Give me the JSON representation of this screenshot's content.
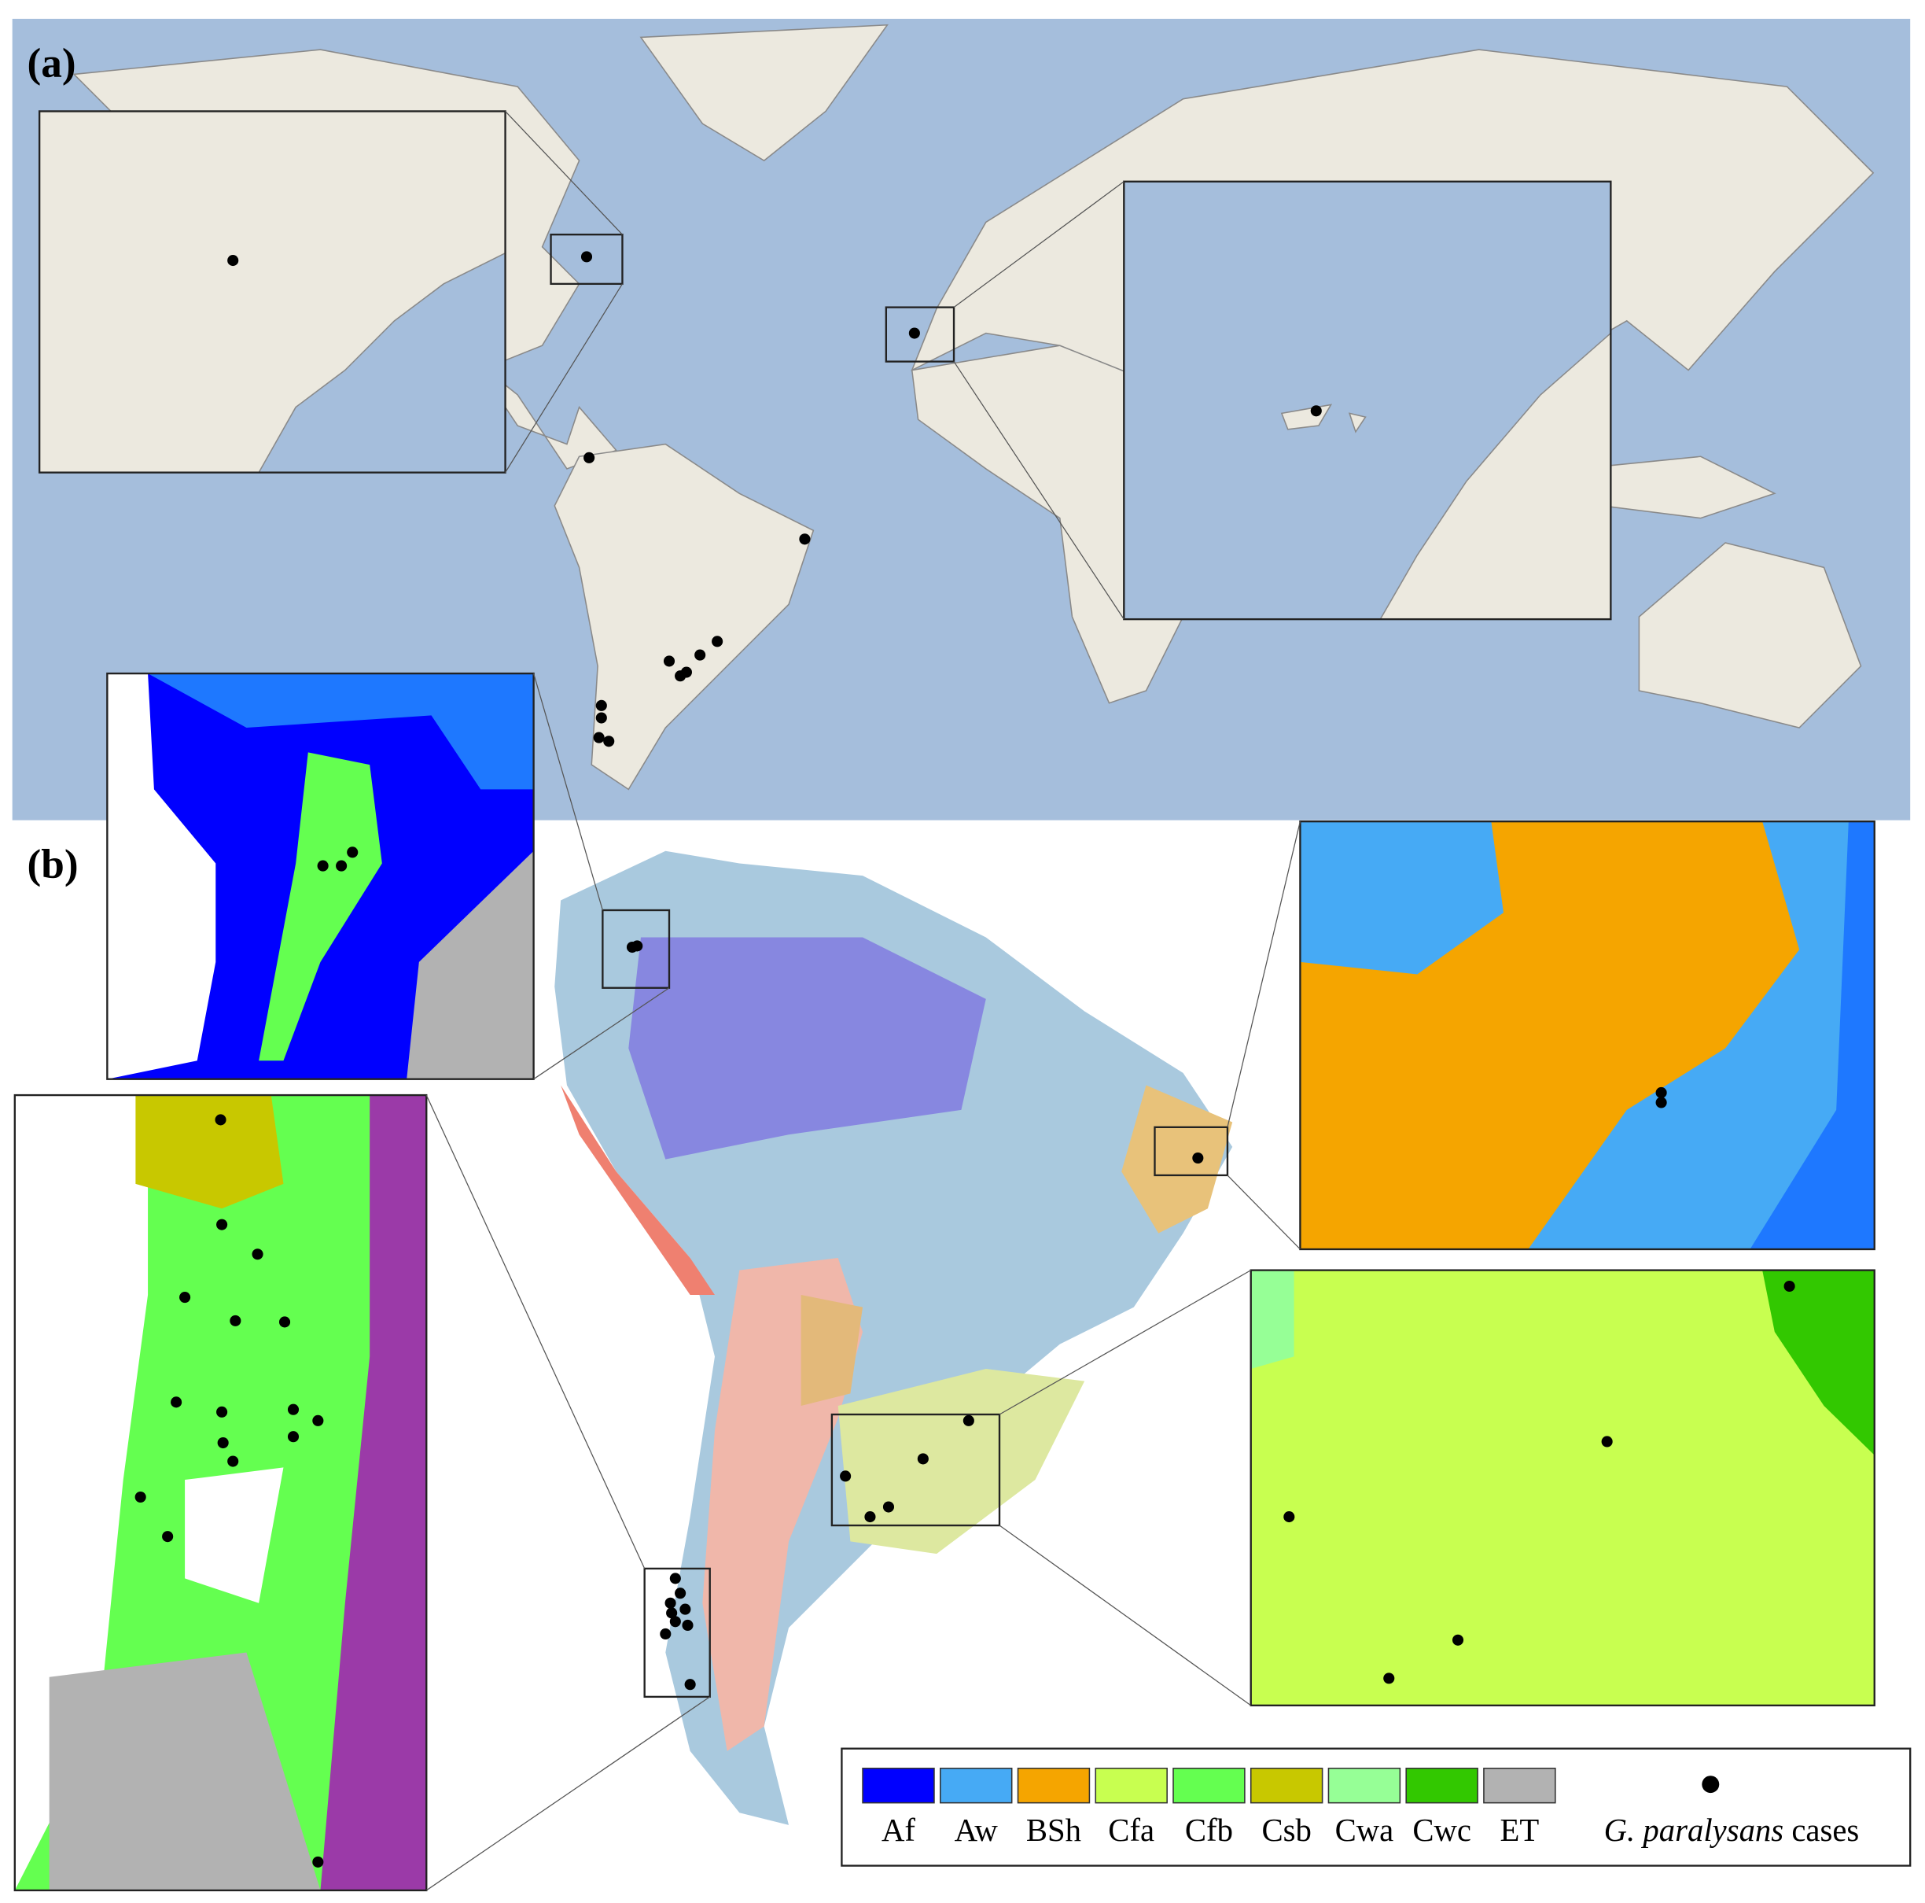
{
  "panels": {
    "a": {
      "label": "(a)"
    },
    "b": {
      "label": "(b)"
    }
  },
  "legend": {
    "items": [
      {
        "label": "Af",
        "color": "#0000ff"
      },
      {
        "label": "Aw",
        "color": "#46aaf5"
      },
      {
        "label": "BSh",
        "color": "#f5a500"
      },
      {
        "label": "Cfa",
        "color": "#c8ff50"
      },
      {
        "label": "Cfb",
        "color": "#64ff50"
      },
      {
        "label": "Csb",
        "color": "#c8c800"
      },
      {
        "label": "Cwa",
        "color": "#96ff96"
      },
      {
        "label": "Cwc",
        "color": "#32c800"
      },
      {
        "label": "ET",
        "color": "#b2b2b2"
      }
    ],
    "cases": {
      "species": "G. paralysans",
      "text": "cases"
    }
  }
}
